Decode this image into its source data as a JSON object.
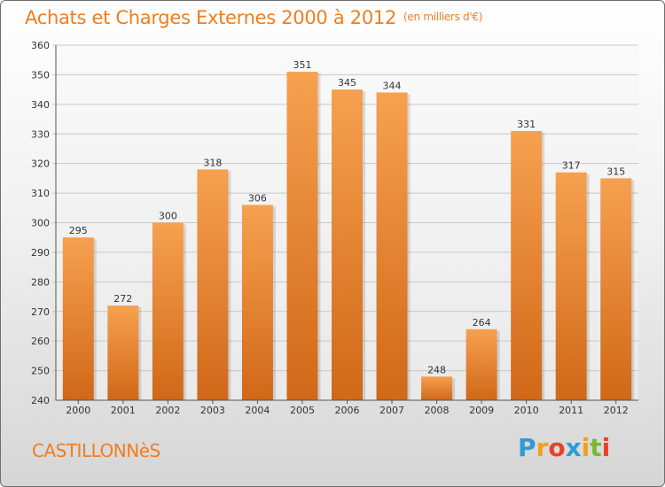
{
  "title": "Achats et Charges Externes 2000 à 2012",
  "unit": "(en milliers d'€)",
  "commune": "CASTILLONNèS",
  "logo": {
    "letters": [
      "P",
      "r",
      "o",
      "x",
      "i",
      "t",
      "i"
    ],
    "colors": [
      "#2e9bd6",
      "#f0a020",
      "#e8402a",
      "#2e9bd6",
      "#f0a020",
      "#7ab733",
      "#e8402a"
    ]
  },
  "colors": {
    "accent": "#f07d1e",
    "bar_top": "#f6a150",
    "bar_bottom": "#d06818"
  },
  "chart_data": {
    "type": "bar",
    "title": "Achats et Charges Externes 2000 à 2012",
    "categories": [
      "2000",
      "2001",
      "2002",
      "2003",
      "2004",
      "2005",
      "2006",
      "2007",
      "2008",
      "2009",
      "2010",
      "2011",
      "2012"
    ],
    "values": [
      295,
      272,
      300,
      318,
      306,
      351,
      345,
      344,
      248,
      264,
      331,
      317,
      315
    ],
    "ylim": [
      240,
      360
    ],
    "yticks": [
      240,
      250,
      260,
      270,
      280,
      290,
      300,
      310,
      320,
      330,
      340,
      350,
      360
    ],
    "xlabel": "",
    "ylabel": "",
    "grid": true
  }
}
